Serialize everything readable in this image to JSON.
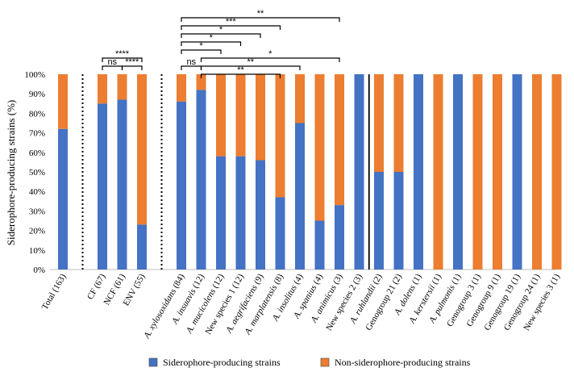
{
  "chart_data": {
    "type": "bar",
    "stacked": true,
    "ylabel": "Siderophore-producing strains (%)",
    "ylim": [
      0,
      100
    ],
    "yticks": [
      "0%",
      "10%",
      "20%",
      "30%",
      "40%",
      "50%",
      "60%",
      "70%",
      "80%",
      "90%",
      "100%"
    ],
    "categories": [
      {
        "label": "Total (163)",
        "italic_part": ""
      },
      {
        "label": "CF (67)",
        "italic_part": ""
      },
      {
        "label": "NCF (61)",
        "italic_part": ""
      },
      {
        "label": "ENV (55)",
        "italic_part": ""
      },
      {
        "label": "A. xylosoxidans (84)",
        "italic_part": "A. xylosoxidans"
      },
      {
        "label": "A. insuavis (12)",
        "italic_part": "A. insuavis"
      },
      {
        "label": "A. mucicolens (12)",
        "italic_part": "A. mucicolens"
      },
      {
        "label": "New species 1 (12)",
        "italic_part": ""
      },
      {
        "label": "A. aegrifaciens (9)",
        "italic_part": "A. aegrifaciens"
      },
      {
        "label": "A. marplatensis (8)",
        "italic_part": "A. marplatensis"
      },
      {
        "label": "A. insolitus (4)",
        "italic_part": "A. insolitus"
      },
      {
        "label": "A. spanius (4)",
        "italic_part": "A. spanius"
      },
      {
        "label": "A. animicus (3)",
        "italic_part": "A. animicus"
      },
      {
        "label": "New species 2 (3)",
        "italic_part": ""
      },
      {
        "label": "A. ruhlandii (2)",
        "italic_part": "A. ruhlandii"
      },
      {
        "label": "Genogroup 21 (2)",
        "italic_part": ""
      },
      {
        "label": "A. dolens (1)",
        "italic_part": "A. dolens"
      },
      {
        "label": "A. kerstersii (1)",
        "italic_part": "A. kerstersii"
      },
      {
        "label": "A. pulmonis (1)",
        "italic_part": "A. pulmonis"
      },
      {
        "label": "Genogroup 3 (1)",
        "italic_part": ""
      },
      {
        "label": "Genogroup 9 (1)",
        "italic_part": ""
      },
      {
        "label": "Genogroup 19 (1)",
        "italic_part": ""
      },
      {
        "label": "Genogroup 24 (1)",
        "italic_part": ""
      },
      {
        "label": "New species 3 (1)",
        "italic_part": ""
      }
    ],
    "slots": [
      0,
      2,
      3,
      4,
      6,
      7,
      8,
      9,
      10,
      11,
      12,
      13,
      14,
      15,
      16,
      17,
      18,
      19,
      20,
      21,
      22,
      23,
      24,
      25
    ],
    "series": [
      {
        "name": "Siderophore-producing strains",
        "color": "#4472C4",
        "values": [
          72,
          85,
          87,
          23,
          86,
          92,
          58,
          58,
          56,
          37,
          75,
          25,
          33,
          100,
          50,
          50,
          100,
          0,
          100,
          0,
          0,
          100,
          0,
          0
        ]
      },
      {
        "name": "Non-siderophore-producing strains",
        "color": "#ED7D31",
        "values": [
          28,
          15,
          13,
          77,
          14,
          8,
          42,
          42,
          44,
          63,
          25,
          75,
          67,
          0,
          50,
          50,
          0,
          100,
          0,
          100,
          100,
          0,
          100,
          100
        ]
      }
    ],
    "separators": [
      {
        "after_slot": 1,
        "style": "dotted"
      },
      {
        "after_slot": 5,
        "style": "dotted"
      },
      {
        "after_slot": 15.5,
        "style": "solid"
      }
    ],
    "significance": [
      {
        "from": 1,
        "to": 2,
        "label": "ns",
        "level": 0
      },
      {
        "from": 2,
        "to": 3,
        "label": "****",
        "level": 0
      },
      {
        "from": 1,
        "to": 3,
        "label": "****",
        "level": 1
      },
      {
        "from": 4,
        "to": 5,
        "label": "ns",
        "level": 0
      },
      {
        "from": 5,
        "to": 9,
        "label": "**",
        "level": -1
      },
      {
        "from": 5,
        "to": 10,
        "label": "**",
        "level": 0
      },
      {
        "from": 5,
        "to": 12,
        "label": "*",
        "level": 1
      },
      {
        "from": 4,
        "to": 6,
        "label": "*",
        "level": 2
      },
      {
        "from": 4,
        "to": 7,
        "label": "*",
        "level": 3
      },
      {
        "from": 4,
        "to": 8,
        "label": "*",
        "level": 4
      },
      {
        "from": 4,
        "to": 9,
        "label": "***",
        "level": 5
      },
      {
        "from": 4,
        "to": 12,
        "label": "**",
        "level": 6
      }
    ],
    "legend_position": "bottom"
  }
}
